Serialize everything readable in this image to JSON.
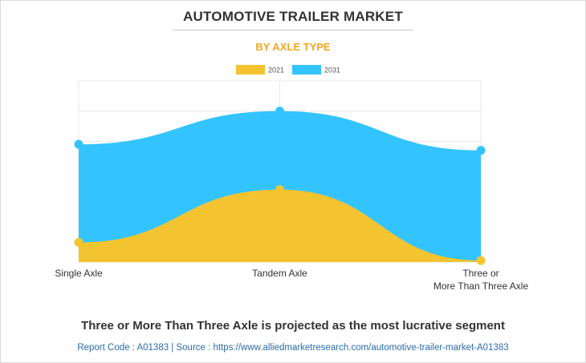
{
  "header": {
    "title": "AUTOMOTIVE TRAILER MARKET",
    "subtitle": "BY AXLE TYPE",
    "subtitle_color": "#f5a623"
  },
  "footer": {
    "note": "Three or More Than Three Axle is projected as the most lucrative segment",
    "source": "Report Code : A01383  |  Source : https://www.alliedmarketresearch.com/automotive-trailer-market-A01383"
  },
  "chart_data": {
    "type": "area",
    "categories": [
      "Single Axle",
      "Tandem Axle",
      "Three or More Than Three Axle"
    ],
    "category_label_lines": [
      [
        "Single Axle"
      ],
      [
        "Tandem Axle"
      ],
      [
        "Three or",
        "More Than Three Axle"
      ]
    ],
    "series": [
      {
        "name": "2021",
        "color": "#f4c430",
        "values": [
          0.65,
          2.4,
          0.05
        ]
      },
      {
        "name": "2031",
        "color": "#33c4ff",
        "values": [
          3.9,
          5.0,
          3.7
        ]
      }
    ],
    "ylim": [
      0,
      6
    ],
    "grid": true,
    "legend_position": "top-center",
    "y_tick_labels_shown": false
  }
}
